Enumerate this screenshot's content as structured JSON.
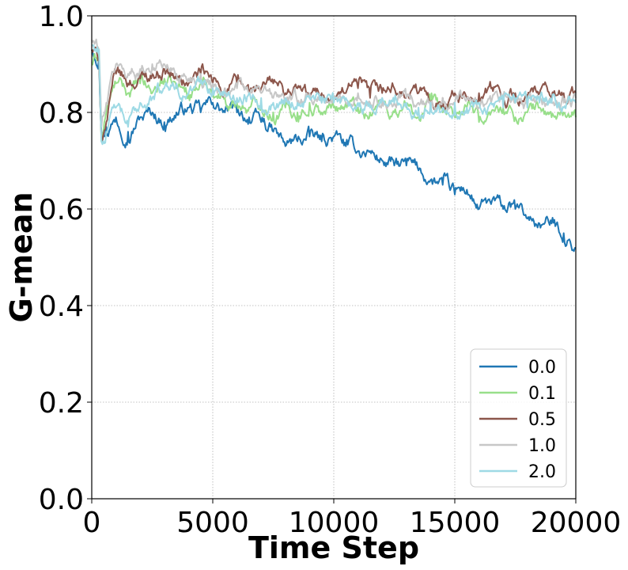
{
  "chart_data": {
    "type": "line",
    "xlabel": "Time Step",
    "ylabel": "G-mean",
    "xlim": [
      0,
      20000
    ],
    "ylim": [
      0.0,
      1.0
    ],
    "xticks": [
      0,
      5000,
      10000,
      15000,
      20000
    ],
    "yticks": [
      0.0,
      0.2,
      0.4,
      0.6,
      0.8,
      1.0
    ],
    "xtick_labels": [
      "0",
      "5000",
      "10000",
      "15000",
      "20000"
    ],
    "ytick_labels": [
      "0.0",
      "0.2",
      "0.4",
      "0.6",
      "0.8",
      "1.0"
    ],
    "grid": true,
    "legend_position": "lower-right",
    "series": [
      {
        "name": "0.0",
        "color": "#1f77b4",
        "x": [
          0,
          300,
          400,
          600,
          1000,
          1500,
          2000,
          2500,
          3000,
          3500,
          4000,
          4500,
          5000,
          5500,
          6000,
          6500,
          7000,
          7500,
          8000,
          8500,
          9000,
          9500,
          10000,
          10500,
          11000,
          11500,
          12000,
          12500,
          13000,
          13500,
          14000,
          14500,
          15000,
          15500,
          16000,
          16500,
          17000,
          17500,
          18000,
          18500,
          19000,
          19500,
          20000
        ],
        "y": [
          0.93,
          0.92,
          0.76,
          0.77,
          0.79,
          0.76,
          0.79,
          0.8,
          0.78,
          0.8,
          0.81,
          0.8,
          0.82,
          0.8,
          0.8,
          0.79,
          0.78,
          0.76,
          0.73,
          0.74,
          0.75,
          0.74,
          0.75,
          0.73,
          0.72,
          0.72,
          0.7,
          0.69,
          0.69,
          0.68,
          0.66,
          0.65,
          0.63,
          0.64,
          0.6,
          0.61,
          0.6,
          0.6,
          0.58,
          0.57,
          0.57,
          0.55,
          0.52
        ]
      },
      {
        "name": "0.1",
        "color": "#98df8a",
        "x": [
          0,
          300,
          400,
          600,
          1000,
          1500,
          2000,
          2500,
          3000,
          3500,
          4000,
          4500,
          5000,
          5500,
          6000,
          6500,
          7000,
          7500,
          8000,
          8500,
          9000,
          9500,
          10000,
          10500,
          11000,
          11500,
          12000,
          12500,
          13000,
          13500,
          14000,
          14500,
          15000,
          15500,
          16000,
          16500,
          17000,
          17500,
          18000,
          18500,
          19000,
          19500,
          20000
        ],
        "y": [
          0.9,
          0.92,
          0.74,
          0.8,
          0.86,
          0.84,
          0.86,
          0.84,
          0.87,
          0.85,
          0.84,
          0.86,
          0.85,
          0.83,
          0.82,
          0.81,
          0.82,
          0.8,
          0.81,
          0.8,
          0.82,
          0.8,
          0.81,
          0.82,
          0.81,
          0.8,
          0.82,
          0.8,
          0.81,
          0.79,
          0.81,
          0.8,
          0.79,
          0.81,
          0.78,
          0.8,
          0.81,
          0.79,
          0.8,
          0.81,
          0.79,
          0.8,
          0.79
        ]
      },
      {
        "name": "0.5",
        "color": "#8c564b",
        "x": [
          0,
          300,
          400,
          600,
          1000,
          1500,
          2000,
          2500,
          3000,
          3500,
          4000,
          4500,
          5000,
          5500,
          6000,
          6500,
          7000,
          7500,
          8000,
          8500,
          9000,
          9500,
          10000,
          10500,
          11000,
          11500,
          12000,
          12500,
          13000,
          13500,
          14000,
          14500,
          15000,
          15500,
          16000,
          16500,
          17000,
          17500,
          18000,
          18500,
          19000,
          19500,
          20000
        ],
        "y": [
          0.93,
          0.91,
          0.75,
          0.78,
          0.88,
          0.86,
          0.87,
          0.88,
          0.89,
          0.87,
          0.86,
          0.88,
          0.86,
          0.85,
          0.86,
          0.84,
          0.85,
          0.86,
          0.84,
          0.85,
          0.83,
          0.84,
          0.83,
          0.84,
          0.85,
          0.83,
          0.84,
          0.85,
          0.83,
          0.84,
          0.82,
          0.83,
          0.84,
          0.83,
          0.84,
          0.85,
          0.83,
          0.84,
          0.83,
          0.84,
          0.83,
          0.84,
          0.84
        ]
      },
      {
        "name": "1.0",
        "color": "#c7c7c7",
        "x": [
          0,
          300,
          400,
          600,
          1000,
          1500,
          2000,
          2500,
          3000,
          3500,
          4000,
          4500,
          5000,
          5500,
          6000,
          6500,
          7000,
          7500,
          8000,
          8500,
          9000,
          9500,
          10000,
          10500,
          11000,
          11500,
          12000,
          12500,
          13000,
          13500,
          14000,
          14500,
          15000,
          15500,
          16000,
          16500,
          17000,
          17500,
          18000,
          18500,
          19000,
          19500,
          20000
        ],
        "y": [
          0.95,
          0.93,
          0.77,
          0.82,
          0.9,
          0.88,
          0.89,
          0.9,
          0.9,
          0.88,
          0.87,
          0.88,
          0.86,
          0.85,
          0.85,
          0.84,
          0.84,
          0.83,
          0.83,
          0.82,
          0.84,
          0.82,
          0.83,
          0.82,
          0.84,
          0.82,
          0.83,
          0.82,
          0.83,
          0.82,
          0.81,
          0.83,
          0.82,
          0.83,
          0.81,
          0.82,
          0.83,
          0.82,
          0.81,
          0.83,
          0.82,
          0.82,
          0.83
        ]
      },
      {
        "name": "2.0",
        "color": "#9edae5",
        "x": [
          0,
          300,
          400,
          600,
          1000,
          1500,
          2000,
          2500,
          3000,
          3500,
          4000,
          4500,
          5000,
          5500,
          6000,
          6500,
          7000,
          7500,
          8000,
          8500,
          9000,
          9500,
          10000,
          10500,
          11000,
          11500,
          12000,
          12500,
          13000,
          13500,
          14000,
          14500,
          15000,
          15500,
          16000,
          16500,
          17000,
          17500,
          18000,
          18500,
          19000,
          19500,
          20000
        ],
        "y": [
          0.94,
          0.93,
          0.74,
          0.76,
          0.81,
          0.77,
          0.82,
          0.83,
          0.85,
          0.86,
          0.84,
          0.86,
          0.85,
          0.84,
          0.83,
          0.84,
          0.83,
          0.82,
          0.83,
          0.82,
          0.83,
          0.82,
          0.82,
          0.83,
          0.82,
          0.81,
          0.83,
          0.82,
          0.82,
          0.81,
          0.82,
          0.81,
          0.82,
          0.81,
          0.82,
          0.82,
          0.81,
          0.82,
          0.81,
          0.82,
          0.82,
          0.81,
          0.82
        ]
      }
    ]
  }
}
